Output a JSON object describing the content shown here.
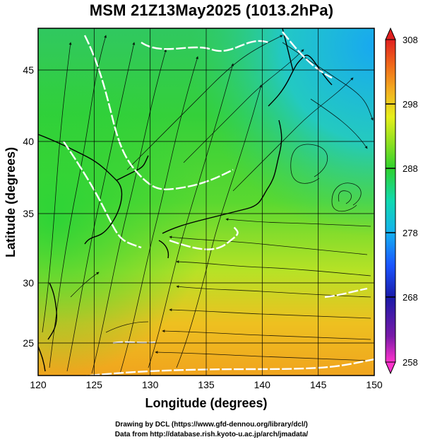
{
  "title": "MSM 21Z13May2025 (1013.2hPa)",
  "xaxis": {
    "label": "Longitude (degrees)",
    "range": [
      120,
      150
    ],
    "ticks": [
      "120",
      "125",
      "130",
      "135",
      "140",
      "145",
      "150"
    ]
  },
  "yaxis": {
    "label": "Latitude  (degrees)",
    "range": [
      22.4,
      47.6
    ],
    "ticks": [
      "25",
      "30",
      "35",
      "40",
      "45"
    ]
  },
  "colorbar": {
    "min": 258,
    "max": 308,
    "ticks": [
      "308",
      "298",
      "288",
      "278",
      "268",
      "258"
    ]
  },
  "colors": {
    "cool": "#0fb4e6",
    "mid": "#2fd12f",
    "warm": "#f0b000",
    "contour": "#ffffff",
    "streamline": "#000000"
  },
  "credits": {
    "line1": "Drawing by DCL (https://www.gfd-dennou.org/library/dcl/)",
    "line2": "Data from http://database.rish.kyoto-u.ac.jp/arch/jmadata/"
  }
}
